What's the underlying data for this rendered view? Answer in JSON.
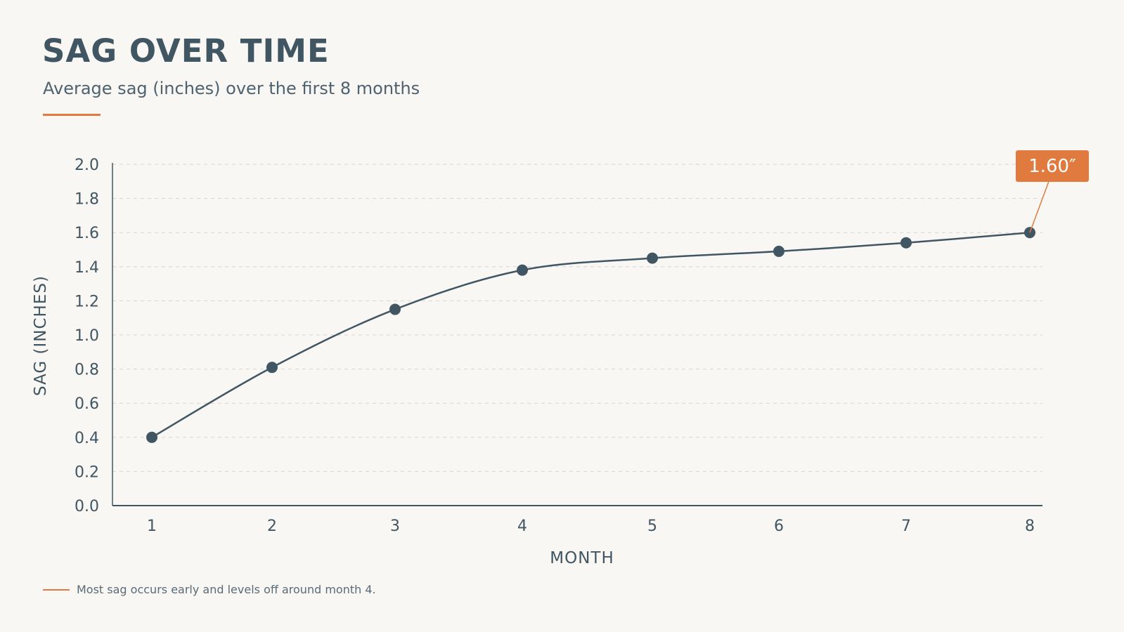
{
  "header": {
    "title": "SAG OVER TIME",
    "subtitle": "Average sag (inches) over the first 8 months"
  },
  "colors": {
    "line": "#415663",
    "accent": "#e07a3f",
    "grid": "#d9d6d0",
    "axis": "#415663"
  },
  "chart_data": {
    "type": "line",
    "title": "SAG OVER TIME",
    "subtitle": "Average sag (inches) over the first 8 months",
    "xlabel": "MONTH",
    "ylabel": "SAG (INCHES)",
    "x": [
      1,
      2,
      3,
      4,
      5,
      6,
      7,
      8
    ],
    "x_tick_labels": [
      "1",
      "2",
      "3",
      "4",
      "5",
      "6",
      "7",
      "8"
    ],
    "series": [
      {
        "values": [
          0.4,
          0.81,
          1.15,
          1.38,
          1.45,
          1.49,
          1.54,
          1.6
        ]
      }
    ],
    "ylim": [
      0,
      2.0
    ],
    "y_ticks": [
      "0.0",
      "0.2",
      "0.4",
      "0.6",
      "0.8",
      "1.0",
      "1.2",
      "1.4",
      "1.6",
      "1.8",
      "2.0"
    ],
    "grid": true,
    "callout": {
      "label": "1.60″",
      "x": 8,
      "value": 1.6
    },
    "annotation": "Most sag occurs early and levels off around month 4."
  }
}
